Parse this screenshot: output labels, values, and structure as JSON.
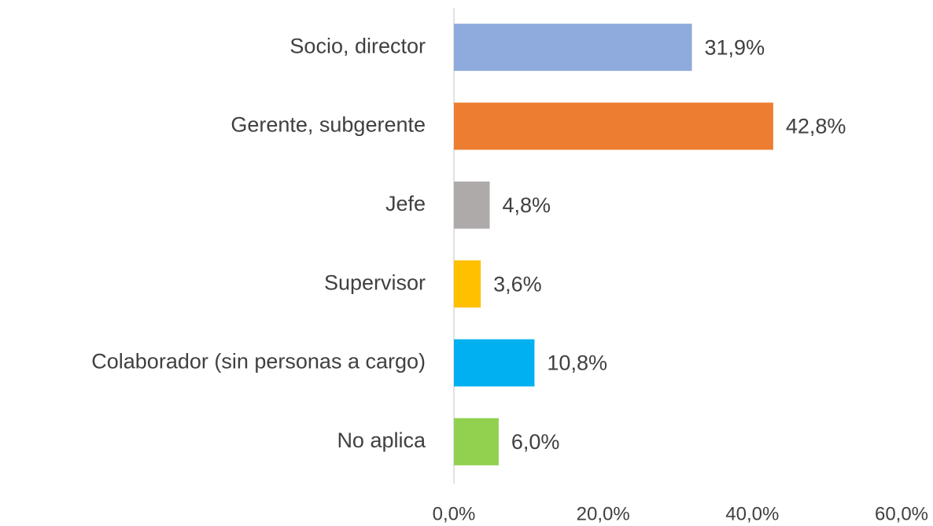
{
  "chart_data": {
    "type": "hbar",
    "categories": [
      "Socio, director",
      "Gerente, subgerente",
      "Jefe",
      "Supervisor",
      "Colaborador (sin personas a cargo)",
      "No aplica"
    ],
    "values": [
      31.9,
      42.8,
      4.8,
      3.6,
      10.8,
      6.0
    ],
    "value_labels": [
      "31,9%",
      "42,8%",
      "4,8%",
      "3,6%",
      "10,8%",
      "6,0%"
    ],
    "colors": [
      "#8faadc",
      "#ed7d31",
      "#aeaaaa",
      "#ffc000",
      "#00b0f0",
      "#92d050"
    ],
    "xlim": [
      0,
      60
    ],
    "xticks": [
      {
        "value": 0,
        "label": "0,0%"
      },
      {
        "value": 20,
        "label": "20,0%"
      },
      {
        "value": 40,
        "label": "40,0%"
      },
      {
        "value": 60,
        "label": "60,0%"
      }
    ],
    "grid": false
  }
}
